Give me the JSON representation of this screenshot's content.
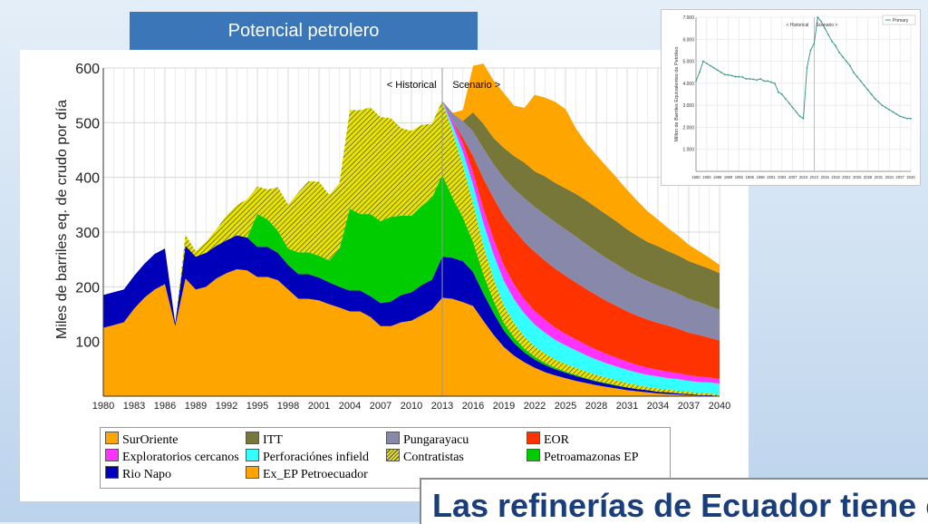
{
  "banner": {
    "title": "Potencial petrolero"
  },
  "footer": {
    "title": "Las refinerías de Ecuador tiene co"
  },
  "chart_data": [
    {
      "type": "area",
      "stacked": true,
      "title": "",
      "ylabel": "Miles de barriles eq. de crudo por día",
      "xlabel": "",
      "xlim": [
        1980,
        2040
      ],
      "ylim": [
        0,
        600
      ],
      "xticks": [
        "1980",
        "1983",
        "1986",
        "1989",
        "1992",
        "1995",
        "1998",
        "2001",
        "2004",
        "2007",
        "2010",
        "2013",
        "2016",
        "2019",
        "2022",
        "2025",
        "2028",
        "2031",
        "2034",
        "2037",
        "2040"
      ],
      "yticks": [
        "100",
        "200",
        "300",
        "400",
        "500",
        "600"
      ],
      "annotations": [
        "< Historical",
        "Scenario >"
      ],
      "grid": true,
      "x": [
        1980,
        1981,
        1982,
        1983,
        1984,
        1985,
        1986,
        1987,
        1988,
        1989,
        1990,
        1991,
        1992,
        1993,
        1994,
        1995,
        1996,
        1997,
        1998,
        1999,
        2000,
        2001,
        2002,
        2003,
        2004,
        2005,
        2006,
        2007,
        2008,
        2009,
        2010,
        2011,
        2012,
        2013,
        2014,
        2015,
        2016,
        2017,
        2018,
        2019,
        2020,
        2021,
        2022,
        2023,
        2024,
        2025,
        2026,
        2027,
        2028,
        2029,
        2030,
        2031,
        2032,
        2033,
        2034,
        2035,
        2036,
        2037,
        2038,
        2039,
        2040
      ],
      "series": [
        {
          "name": "SurOriente",
          "color": "#ffa500",
          "values": [
            125,
            130,
            135,
            160,
            180,
            195,
            205,
            128,
            215,
            195,
            200,
            215,
            225,
            232,
            230,
            218,
            218,
            212,
            195,
            178,
            178,
            175,
            168,
            162,
            155,
            155,
            145,
            128,
            128,
            135,
            138,
            148,
            158,
            180,
            178,
            172,
            165,
            138,
            112,
            90,
            74,
            62,
            52,
            44,
            38,
            33,
            28,
            24,
            20,
            17,
            14,
            11,
            9,
            7,
            5,
            4,
            3,
            2,
            1,
            1,
            0
          ]
        },
        {
          "name": "Rio Napo",
          "color": "#0000bb",
          "values": [
            60,
            60,
            60,
            60,
            62,
            65,
            65,
            5,
            60,
            60,
            62,
            60,
            60,
            62,
            60,
            55,
            55,
            50,
            45,
            45,
            45,
            42,
            40,
            38,
            38,
            38,
            38,
            42,
            45,
            50,
            52,
            55,
            55,
            75,
            75,
            75,
            62,
            50,
            40,
            30,
            23,
            18,
            15,
            13,
            11,
            10,
            9,
            8,
            7,
            6,
            5,
            5,
            4,
            4,
            3,
            3,
            2,
            2,
            1,
            1,
            0
          ]
        },
        {
          "name": "Petroamazonas EP",
          "color": "#00cc00",
          "values": [
            0,
            0,
            0,
            0,
            0,
            0,
            0,
            0,
            0,
            0,
            0,
            0,
            0,
            0,
            0,
            60,
            50,
            40,
            30,
            40,
            40,
            40,
            40,
            70,
            150,
            140,
            150,
            150,
            155,
            145,
            140,
            145,
            150,
            150,
            110,
            80,
            55,
            35,
            22,
            14,
            10,
            7,
            5,
            4,
            3,
            2,
            2,
            1,
            1,
            1,
            1,
            0,
            0,
            0,
            0,
            0,
            0,
            0,
            0,
            0,
            0
          ]
        },
        {
          "name": "Contratistas",
          "color": "#e8e400",
          "hatch": true,
          "values": [
            0,
            0,
            0,
            0,
            0,
            0,
            0,
            0,
            20,
            10,
            20,
            30,
            45,
            55,
            70,
            50,
            55,
            80,
            80,
            110,
            130,
            135,
            120,
            120,
            180,
            190,
            195,
            190,
            180,
            160,
            155,
            148,
            135,
            135,
            120,
            95,
            70,
            52,
            40,
            32,
            26,
            22,
            19,
            17,
            15,
            14,
            13,
            12,
            11,
            10,
            9,
            8,
            7,
            6,
            6,
            5,
            5,
            4,
            4,
            3,
            3
          ]
        },
        {
          "name": "Perforaciónes infield",
          "color": "#33ffff",
          "values": [
            0,
            0,
            0,
            0,
            0,
            0,
            0,
            0,
            0,
            0,
            0,
            0,
            0,
            0,
            0,
            0,
            0,
            0,
            0,
            0,
            0,
            0,
            0,
            0,
            0,
            0,
            0,
            0,
            0,
            0,
            0,
            0,
            0,
            0,
            12,
            25,
            35,
            42,
            45,
            45,
            44,
            42,
            40,
            38,
            36,
            34,
            32,
            30,
            28,
            26,
            25,
            24,
            23,
            22,
            22,
            21,
            21,
            20,
            20,
            20,
            20
          ]
        },
        {
          "name": "Exploratorios cercanos",
          "color": "#ff33ff",
          "values": [
            0,
            0,
            0,
            0,
            0,
            0,
            0,
            0,
            0,
            0,
            0,
            0,
            0,
            0,
            0,
            0,
            0,
            0,
            0,
            0,
            0,
            0,
            0,
            0,
            0,
            0,
            0,
            0,
            0,
            0,
            0,
            0,
            0,
            0,
            8,
            16,
            22,
            26,
            28,
            28,
            27,
            26,
            25,
            24,
            22,
            21,
            20,
            19,
            18,
            17,
            16,
            15,
            14,
            13,
            12,
            12,
            11,
            10,
            10,
            9,
            9
          ]
        },
        {
          "name": "EOR",
          "color": "#ff3300",
          "values": [
            0,
            0,
            0,
            0,
            0,
            0,
            0,
            0,
            0,
            0,
            0,
            0,
            0,
            0,
            0,
            0,
            0,
            0,
            0,
            0,
            0,
            0,
            0,
            0,
            0,
            0,
            0,
            0,
            0,
            0,
            0,
            0,
            0,
            0,
            0,
            10,
            30,
            55,
            75,
            90,
            100,
            105,
            108,
            108,
            108,
            106,
            104,
            102,
            100,
            97,
            95,
            92,
            90,
            88,
            86,
            84,
            81,
            78,
            76,
            73,
            70
          ]
        },
        {
          "name": "Pungarayacu",
          "color": "#8888aa",
          "values": [
            0,
            0,
            0,
            0,
            0,
            0,
            0,
            0,
            0,
            0,
            0,
            0,
            0,
            0,
            0,
            0,
            0,
            0,
            0,
            0,
            0,
            0,
            0,
            0,
            0,
            0,
            0,
            0,
            0,
            0,
            0,
            0,
            0,
            0,
            15,
            30,
            45,
            55,
            62,
            70,
            75,
            80,
            82,
            84,
            85,
            85,
            84,
            82,
            80,
            78,
            76,
            74,
            72,
            70,
            68,
            66,
            64,
            62,
            60,
            58,
            56
          ]
        },
        {
          "name": "ITT",
          "color": "#77773a",
          "values": [
            0,
            0,
            0,
            0,
            0,
            0,
            0,
            0,
            0,
            0,
            0,
            0,
            0,
            0,
            0,
            0,
            0,
            0,
            0,
            0,
            0,
            0,
            0,
            0,
            0,
            0,
            0,
            0,
            0,
            0,
            0,
            0,
            0,
            0,
            0,
            0,
            35,
            45,
            48,
            55,
            60,
            65,
            65,
            70,
            72,
            75,
            78,
            80,
            80,
            80,
            78,
            76,
            74,
            72,
            72,
            70,
            70,
            69,
            68,
            68,
            67
          ]
        },
        {
          "name": "Ex_EP Petroecuador",
          "color": "#ffa500",
          "values": [
            0,
            0,
            0,
            0,
            0,
            0,
            0,
            0,
            0,
            0,
            0,
            0,
            0,
            0,
            0,
            0,
            0,
            0,
            0,
            0,
            0,
            0,
            0,
            0,
            0,
            0,
            0,
            0,
            0,
            0,
            0,
            0,
            0,
            0,
            0,
            20,
            85,
            110,
            105,
            100,
            92,
            100,
            140,
            144,
            148,
            145,
            120,
            105,
            96,
            88,
            80,
            72,
            64,
            56,
            49,
            42,
            36,
            30,
            25,
            20,
            15
          ]
        }
      ],
      "legend": [
        {
          "label": "SurOriente",
          "color": "#ffa500"
        },
        {
          "label": "ITT",
          "color": "#77773a"
        },
        {
          "label": "Pungarayacu",
          "color": "#8888aa"
        },
        {
          "label": "EOR",
          "color": "#ff3300"
        },
        {
          "label": "Exploratorios cercanos",
          "color": "#ff33ff"
        },
        {
          "label": "Perforaciónes infield",
          "color": "#33ffff"
        },
        {
          "label": "Contratistas",
          "color": "#e8e400",
          "hatch": true
        },
        {
          "label": "Petroamazonas EP",
          "color": "#00cc00"
        },
        {
          "label": "Rio Napo",
          "color": "#0000bb"
        },
        {
          "label": "Ex_EP Petroecuador",
          "color": "#ffa500"
        }
      ]
    },
    {
      "type": "line",
      "title": "",
      "ylabel": "Millon de Barriles Equivalentes de Petróleo",
      "xlabel": "",
      "xlim": [
        1980,
        2040
      ],
      "ylim": [
        0,
        7000
      ],
      "xticks": [
        "1980",
        "1983",
        "1986",
        "1989",
        "1992",
        "1995",
        "1998",
        "2001",
        "2004",
        "2007",
        "2010",
        "2013",
        "2016",
        "2019",
        "2022",
        "2025",
        "2028",
        "2031",
        "2034",
        "2037",
        "2040"
      ],
      "yticks": [
        "1.000",
        "2.000",
        "3.000",
        "4.000",
        "5.000",
        "6.000",
        "7.000"
      ],
      "annotations": [
        "< Historical",
        "Scenario >"
      ],
      "legend": [
        "Primary"
      ],
      "series": [
        {
          "name": "Primary",
          "color": "#3a9a8a",
          "x": [
            1980,
            1981,
            1982,
            1983,
            1984,
            1985,
            1986,
            1987,
            1988,
            1989,
            1990,
            1991,
            1992,
            1993,
            1994,
            1995,
            1996,
            1997,
            1998,
            1999,
            2000,
            2001,
            2002,
            2003,
            2004,
            2005,
            2006,
            2007,
            2008,
            2009,
            2010,
            2011,
            2012,
            2013,
            2014,
            2015,
            2016,
            2017,
            2018,
            2019,
            2020,
            2021,
            2022,
            2023,
            2024,
            2025,
            2026,
            2027,
            2028,
            2029,
            2030,
            2031,
            2032,
            2033,
            2034,
            2035,
            2036,
            2037,
            2038,
            2039,
            2040
          ],
          "values": [
            4100,
            4500,
            5000,
            4900,
            4800,
            4700,
            4600,
            4500,
            4400,
            4380,
            4350,
            4300,
            4300,
            4280,
            4200,
            4200,
            4180,
            4150,
            4200,
            4100,
            4100,
            4050,
            4000,
            3600,
            3500,
            3300,
            3100,
            2900,
            2700,
            2500,
            2400,
            4700,
            5500,
            5800,
            7000,
            6800,
            6500,
            6200,
            5900,
            5700,
            5400,
            5200,
            5000,
            4800,
            4500,
            4300,
            4100,
            3900,
            3700,
            3500,
            3300,
            3150,
            3000,
            2900,
            2800,
            2700,
            2600,
            2500,
            2450,
            2400,
            2400
          ]
        }
      ]
    }
  ]
}
